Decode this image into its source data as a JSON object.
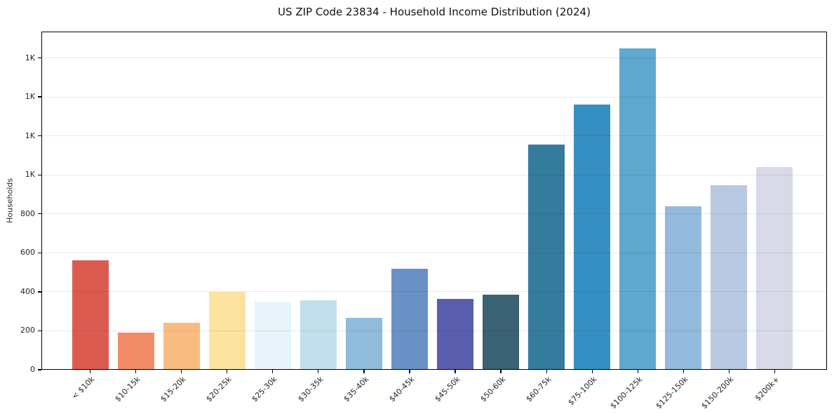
{
  "chart_data": {
    "type": "bar",
    "title": "US ZIP Code 23834 - Household Income Distribution (2024)",
    "xlabel": "",
    "ylabel": "Households",
    "categories": [
      "< $10k",
      "$10-15k",
      "$15-20k",
      "$20-25k",
      "$25-30k",
      "$30-35k",
      "$35-40k",
      "$40-45k",
      "$45-50k",
      "$50-60k",
      "$60-75k",
      "$75-100k",
      "$100-125k",
      "$125-150k",
      "$150-200k",
      "$200k+"
    ],
    "values": [
      560,
      190,
      240,
      400,
      350,
      355,
      265,
      520,
      365,
      385,
      1155,
      1360,
      1650,
      840,
      945,
      1040
    ],
    "bar_colors": [
      "#dc5b51",
      "#f28b68",
      "#f9bc80",
      "#fce3a0",
      "#e8f4f9",
      "#c2e0ec",
      "#8fbcdb",
      "#6991c5",
      "#5a5dab",
      "#3a6174",
      "#357b9e",
      "#368fc3",
      "#5fa8ce",
      "#93badc",
      "#b9c9e1",
      "#d8dae7"
    ],
    "ylim": [
      0,
      1735
    ],
    "yticks": [
      0,
      200,
      400,
      600,
      800,
      1000,
      1200,
      1400,
      1600
    ],
    "ytick_labels": [
      "0",
      "200",
      "400",
      "600",
      "800",
      "1K",
      "1K",
      "1K",
      "1K"
    ],
    "grid": "horizontal",
    "legend": "none",
    "bar_width_fraction": 0.8,
    "x_tick_rotation_deg": 45
  },
  "style": {
    "background": "#ffffff",
    "axis_color": "#000000",
    "grid_color_rgba": "rgba(0,0,0,0.09)",
    "text_color": "#262626"
  }
}
